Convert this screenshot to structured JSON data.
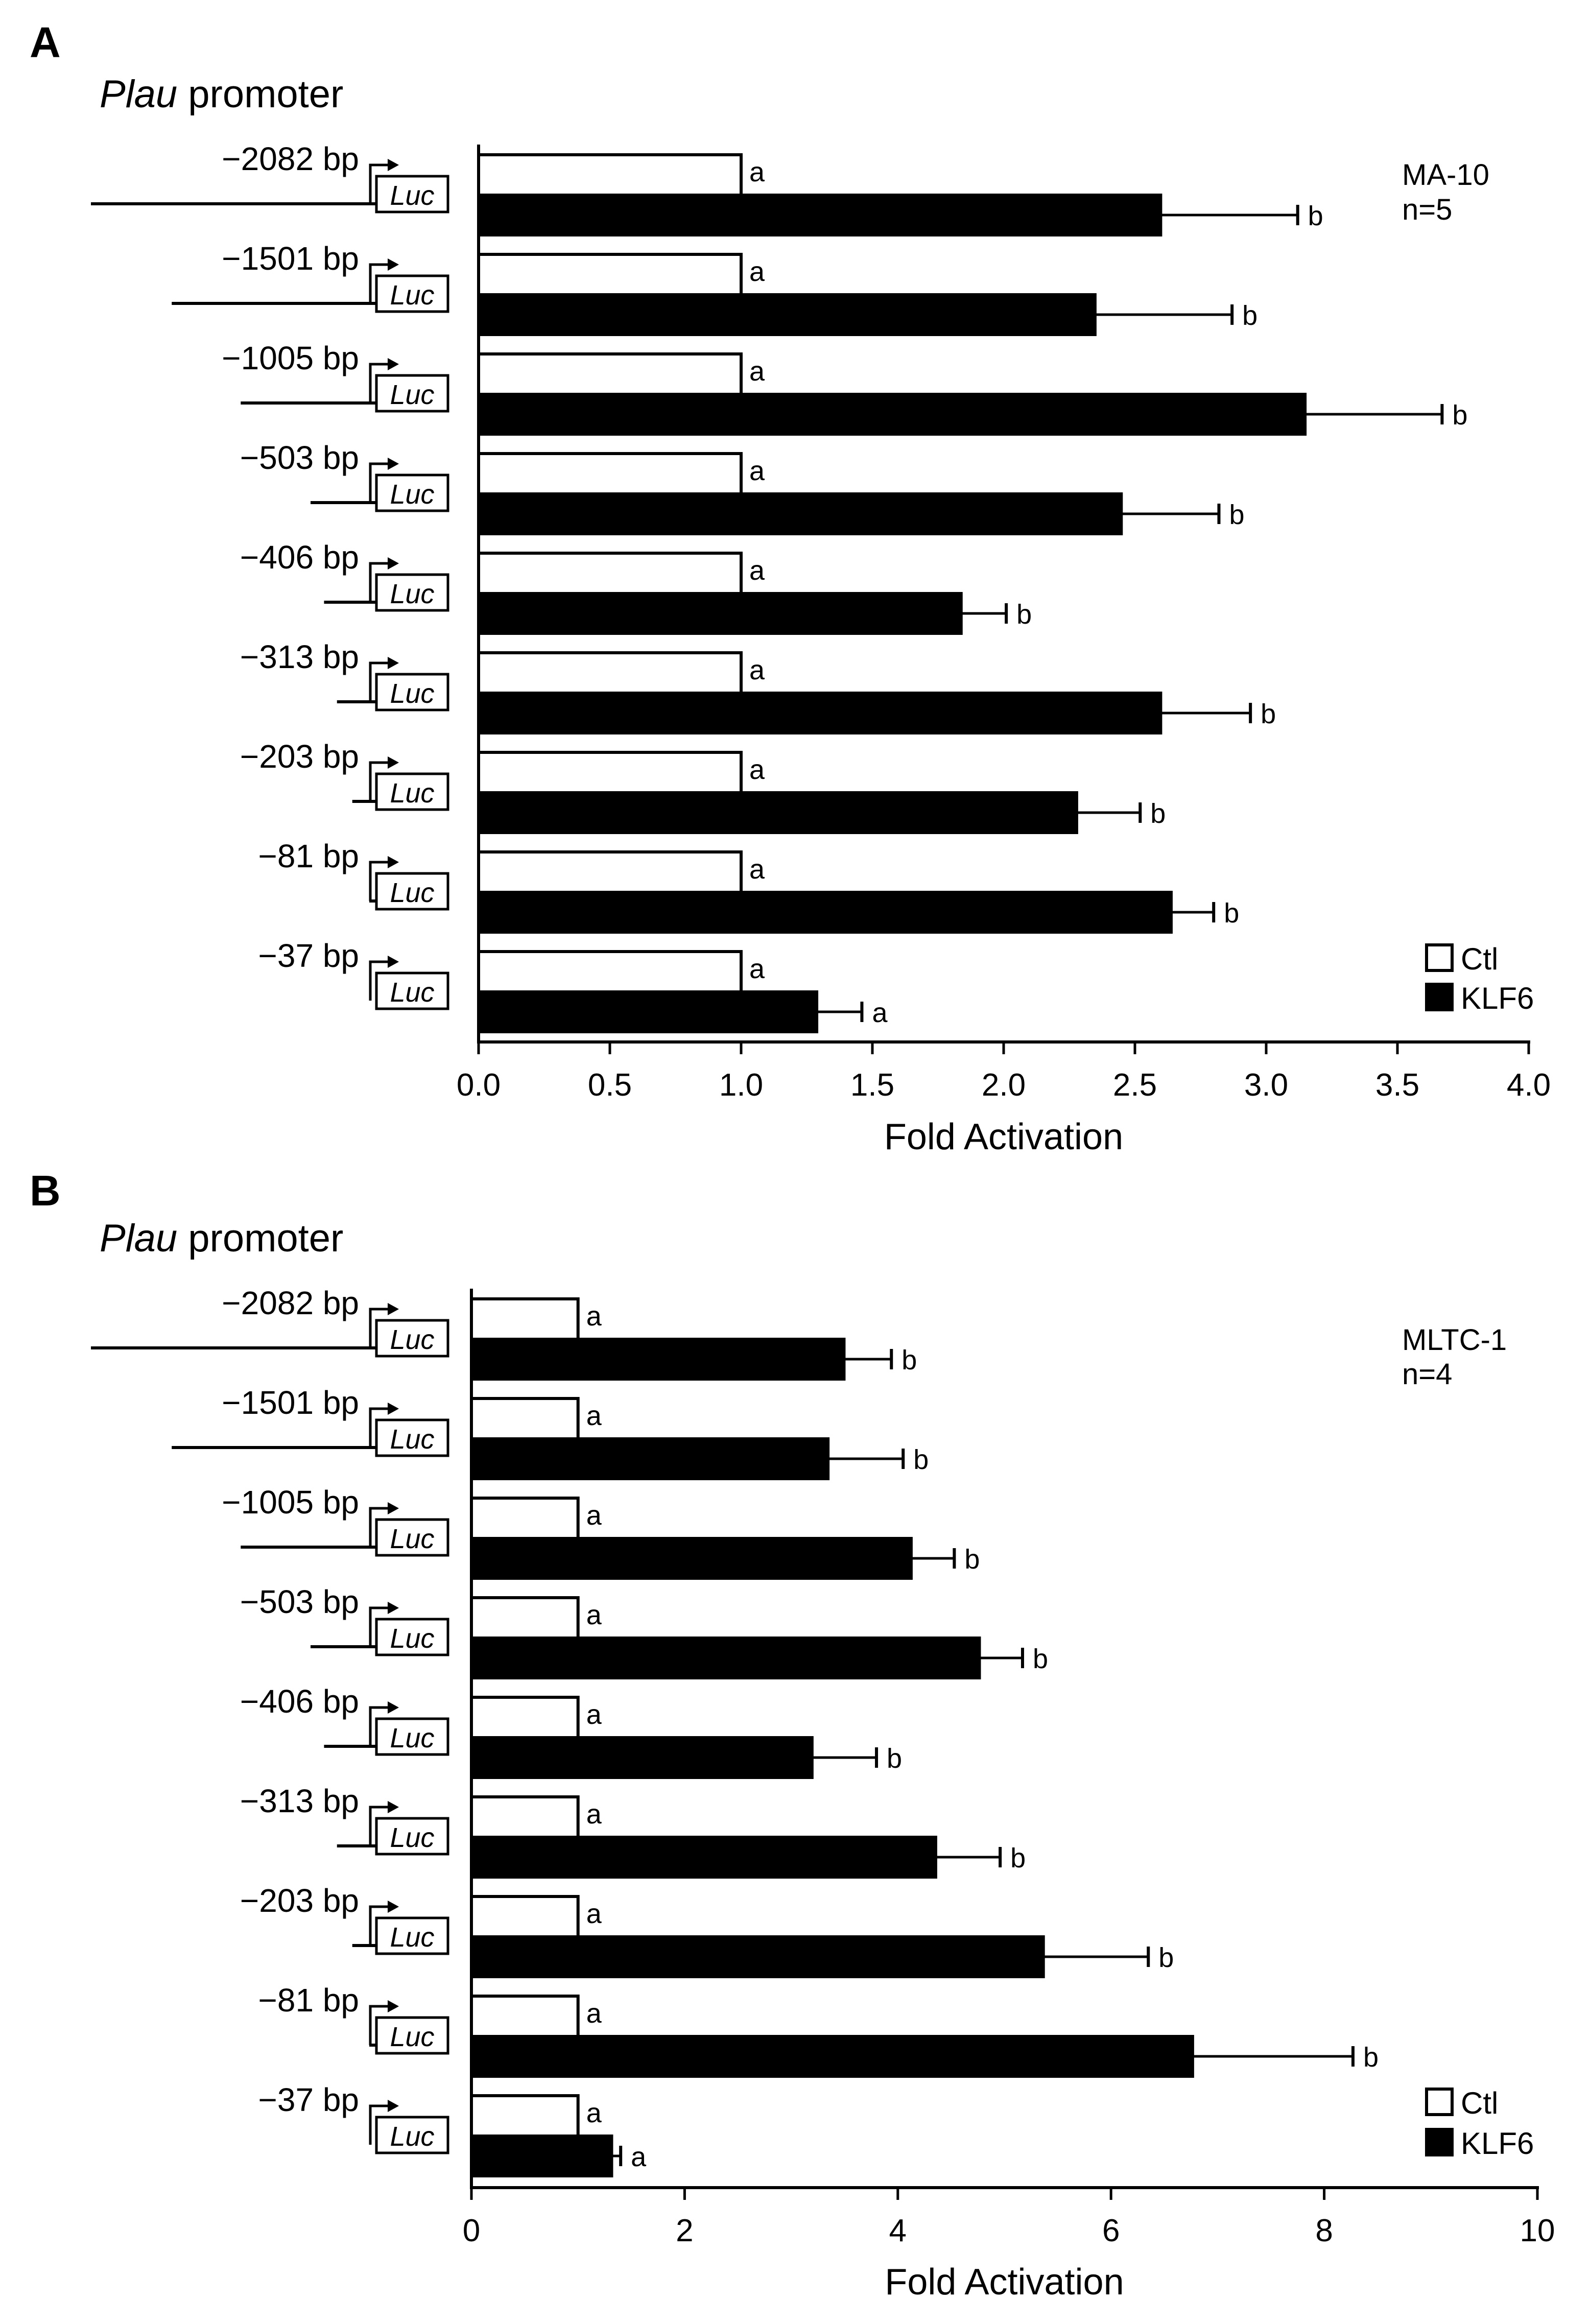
{
  "promoter_label": {
    "italic": "Plau",
    "rest": " promoter"
  },
  "constructs": [
    "−2082 bp",
    "−1501 bp",
    "−1005 bp",
    "−503 bp",
    "−406 bp",
    "−313 bp",
    "−203 bp",
    "−81 bp",
    "−37 bp"
  ],
  "construct_lengths": [
    2082,
    1501,
    1005,
    503,
    406,
    313,
    203,
    81,
    37
  ],
  "reporter_label": "Luc",
  "legend": {
    "ctl": "Ctl",
    "klf6": "KLF6"
  },
  "colors": {
    "ctl": "#ffffff",
    "klf6": "#000000",
    "line": "#000000"
  },
  "chart_data": [
    {
      "type": "bar",
      "panel": "A",
      "cell_line": "MA-10",
      "n_label": "n=5",
      "title": "Plau promoter",
      "xlabel": "Fold Activation",
      "ylabel": "",
      "xlim": [
        0,
        4
      ],
      "ticks": [
        "0.0",
        "0.5",
        "1.0",
        "1.5",
        "2.0",
        "2.5",
        "3.0",
        "3.5",
        "4.0"
      ],
      "tick_values": [
        0,
        0.5,
        1,
        1.5,
        2,
        2.5,
        3,
        3.5,
        4
      ],
      "categories": [
        "−2082 bp",
        "−1501 bp",
        "−1005 bp",
        "−503 bp",
        "−406 bp",
        "−313 bp",
        "−203 bp",
        "−81 bp",
        "−37 bp"
      ],
      "series": [
        {
          "name": "Ctl",
          "values": [
            1,
            1,
            1,
            1,
            1,
            1,
            1,
            1,
            1
          ],
          "letters": [
            "a",
            "a",
            "a",
            "a",
            "a",
            "a",
            "a",
            "a",
            "a"
          ]
        },
        {
          "name": "KLF6",
          "values": [
            2.6,
            2.35,
            3.15,
            2.45,
            1.84,
            2.6,
            2.28,
            2.64,
            1.29
          ],
          "errors": [
            0.52,
            0.52,
            0.52,
            0.37,
            0.17,
            0.34,
            0.24,
            0.16,
            0.17
          ],
          "letters": [
            "b",
            "b",
            "b",
            "b",
            "b",
            "b",
            "b",
            "b",
            "a"
          ]
        }
      ]
    },
    {
      "type": "bar",
      "panel": "B",
      "cell_line": "MLTC-1",
      "n_label": "n=4",
      "title": "Plau promoter",
      "xlabel": "Fold Activation",
      "ylabel": "",
      "xlim": [
        0,
        10
      ],
      "ticks": [
        "0",
        "2",
        "4",
        "6",
        "8",
        "10"
      ],
      "tick_values": [
        0,
        2,
        4,
        6,
        8,
        10
      ],
      "categories": [
        "−2082 bp",
        "−1501 bp",
        "−1005 bp",
        "−503 bp",
        "−406 bp",
        "−313 bp",
        "−203 bp",
        "−81 bp",
        "−37 bp"
      ],
      "series": [
        {
          "name": "Ctl",
          "values": [
            1,
            1,
            1,
            1,
            1,
            1,
            1,
            1,
            1
          ],
          "letters": [
            "a",
            "a",
            "a",
            "a",
            "a",
            "a",
            "a",
            "a",
            "a"
          ]
        },
        {
          "name": "KLF6",
          "values": [
            3.5,
            3.35,
            4.13,
            4.77,
            3.2,
            4.36,
            5.37,
            6.77,
            1.32
          ],
          "errors": [
            0.44,
            0.7,
            0.4,
            0.4,
            0.6,
            0.6,
            0.98,
            1.5,
            0.08
          ],
          "letters": [
            "b",
            "b",
            "b",
            "b",
            "b",
            "b",
            "b",
            "b",
            "a"
          ]
        }
      ]
    }
  ]
}
